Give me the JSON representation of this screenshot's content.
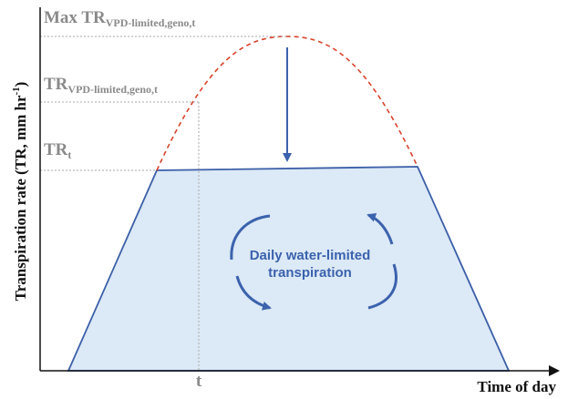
{
  "labels": {
    "max_tr": {
      "main": "Max TR",
      "sub": "VPD-limited,geno,t"
    },
    "tr_vpd": {
      "main": "TR",
      "sub": "VPD-limited,geno,t"
    },
    "tr_t": {
      "main": "TR",
      "sub": "t"
    }
  },
  "y_axis": {
    "text": "Transpiration rate (TR, mm hr",
    "sup": "-1",
    "close": ")"
  },
  "x_axis": {
    "text": "Time of day",
    "tick": "t"
  },
  "center": {
    "line1": "Daily water-limited",
    "line2": "transpiration"
  }
}
